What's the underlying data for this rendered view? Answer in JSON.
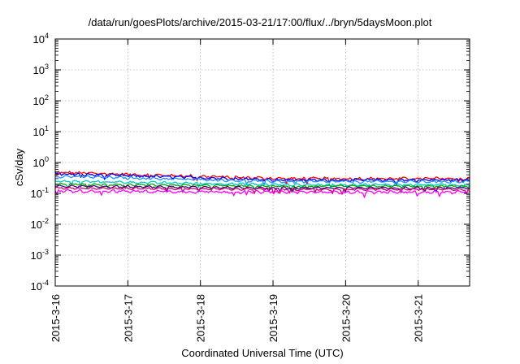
{
  "chart_data": {
    "type": "line",
    "title": "/data/run/goesPlots/archive/2015-03-21/17:00/flux/../bryn/5daysMoon.plot",
    "xlabel": "Coordinated Universal Time (UTC)",
    "ylabel": "cSv/day",
    "yscale": "log",
    "ylim": [
      0.0001,
      10000
    ],
    "y_ticks": [
      {
        "base": "10",
        "exp": "4"
      },
      {
        "base": "10",
        "exp": "3"
      },
      {
        "base": "10",
        "exp": "2"
      },
      {
        "base": "10",
        "exp": "1"
      },
      {
        "base": "10",
        "exp": "0"
      },
      {
        "base": "10",
        "exp": "-1"
      },
      {
        "base": "10",
        "exp": "-2"
      },
      {
        "base": "10",
        "exp": "-3"
      },
      {
        "base": "10",
        "exp": "-4"
      }
    ],
    "xlim": [
      "2015-03-16 00:00",
      "2015-03-21 17:00"
    ],
    "x_ticks": [
      "2015-3-16",
      "2015-3-17",
      "2015-3-18",
      "2015-3-19",
      "2015-3-20",
      "2015-3-21"
    ],
    "grid": true,
    "series": [
      {
        "color": "#ff0000",
        "start": 0.48,
        "end": 0.3,
        "noise": 0.09
      },
      {
        "color": "#0000ff",
        "start": 0.43,
        "end": 0.27,
        "noise": 0.08
      },
      {
        "color": "#1e90ff",
        "start": 0.36,
        "end": 0.24,
        "noise": 0.07
      },
      {
        "color": "#00c8c8",
        "start": 0.25,
        "end": 0.19,
        "noise": 0.06
      },
      {
        "color": "#00aa00",
        "start": 0.2,
        "end": 0.17,
        "noise": 0.05
      },
      {
        "color": "#4b0082",
        "start": 0.17,
        "end": 0.15,
        "noise": 0.05
      },
      {
        "color": "#c8006e",
        "start": 0.15,
        "end": 0.135,
        "noise": 0.05
      },
      {
        "color": "#ff00ff",
        "start": 0.12,
        "end": 0.11,
        "noise": 0.08
      }
    ]
  }
}
